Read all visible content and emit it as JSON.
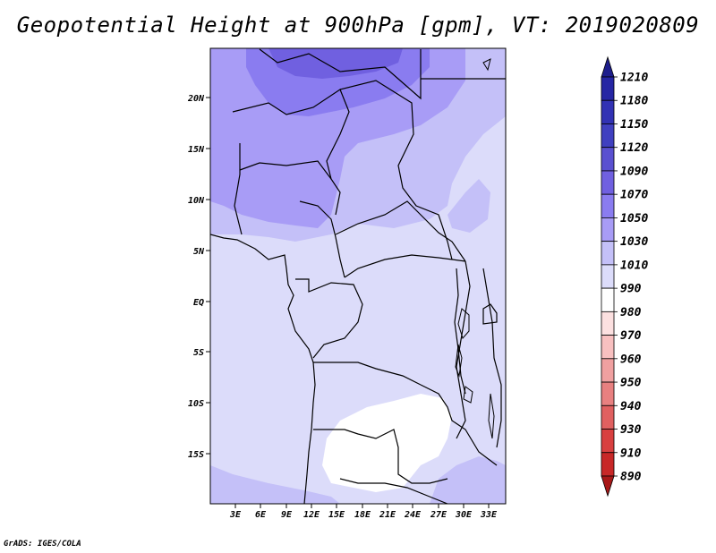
{
  "title": "Geopotential Height at 900hPa [gpm], VT: 2019020809",
  "credit": "GrADS: IGES/COLA",
  "map": {
    "lat_ticks": [
      "20N",
      "15N",
      "10N",
      "5N",
      "EQ",
      "5S",
      "10S",
      "15S"
    ],
    "lon_ticks": [
      "3E",
      "6E",
      "9E",
      "12E",
      "15E",
      "18E",
      "21E",
      "24E",
      "27E",
      "30E",
      "33E"
    ]
  },
  "colorbar": {
    "levels": [
      "1210",
      "1180",
      "1150",
      "1120",
      "1090",
      "1070",
      "1050",
      "1030",
      "1010",
      "990",
      "980",
      "970",
      "960",
      "950",
      "940",
      "930",
      "910",
      "890"
    ],
    "colors": [
      "#1e1e8c",
      "#2626a4",
      "#3232b4",
      "#4040c0",
      "#5a50d0",
      "#7060e0",
      "#8a7cf0",
      "#a89cf6",
      "#c4c0f8",
      "#dcdcfa",
      "#ffffff",
      "#fce0e0",
      "#f8c0c0",
      "#f0a0a0",
      "#e88080",
      "#e06060",
      "#d84040",
      "#c82828",
      "#a81818"
    ]
  }
}
